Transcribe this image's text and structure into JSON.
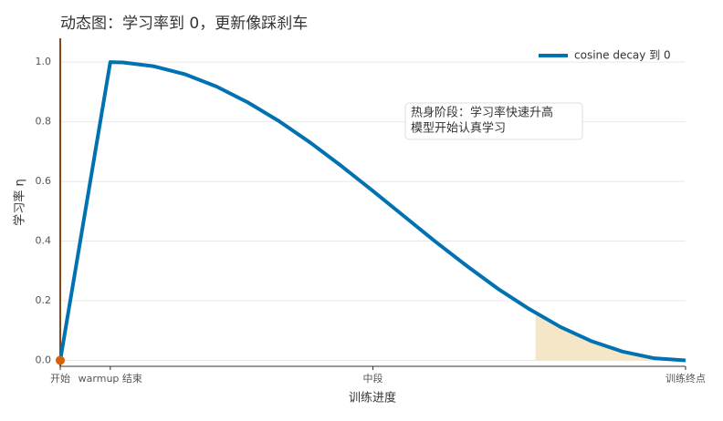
{
  "chart_data": {
    "type": "line",
    "title": "动态图：学习率到 0，更新像踩刹车",
    "x_label": "训练进度",
    "y_label": "学习率 η",
    "xlim": [
      0,
      1
    ],
    "ylim": [
      -0.02,
      1.08
    ],
    "xticks": [
      {
        "value": 0,
        "label": "开始"
      },
      {
        "value": 0.08,
        "label": "warmup 结束"
      },
      {
        "value": 0.5,
        "label": "中段"
      },
      {
        "value": 1,
        "label": "训练终点"
      }
    ],
    "yticks": [
      {
        "value": 0,
        "label": "0.0"
      },
      0.2,
      0.4,
      0.6,
      0.8,
      {
        "value": 1,
        "label": "1.0"
      }
    ],
    "grid": true,
    "legend": "upper right",
    "series": [
      {
        "name": "cosine decay 到 0",
        "color": "#0072b2",
        "x": [
          0,
          0.08,
          0.1,
          0.15,
          0.2,
          0.25,
          0.3,
          0.35,
          0.4,
          0.45,
          0.5,
          0.55,
          0.6,
          0.65,
          0.7,
          0.75,
          0.8,
          0.85,
          0.9,
          0.95,
          1.0
        ],
        "values": [
          0,
          1,
          0.999,
          0.986,
          0.959,
          0.918,
          0.865,
          0.802,
          0.73,
          0.651,
          0.568,
          0.483,
          0.398,
          0.317,
          0.24,
          0.172,
          0.112,
          0.064,
          0.029,
          0.007,
          0
        ]
      }
    ],
    "highlight": {
      "color": "#f5e6c8",
      "x": [
        0.76,
        0.8,
        0.85,
        0.9,
        0.95,
        1.0
      ],
      "values": [
        0.159,
        0.112,
        0.064,
        0.029,
        0.007,
        0
      ]
    },
    "marker": {
      "x": 0,
      "y": 0,
      "color": "#d95f02"
    },
    "left_spine_color": "#8b4513",
    "annotation": [
      "热身阶段：学习率快速升高",
      "模型开始认真学习"
    ]
  }
}
